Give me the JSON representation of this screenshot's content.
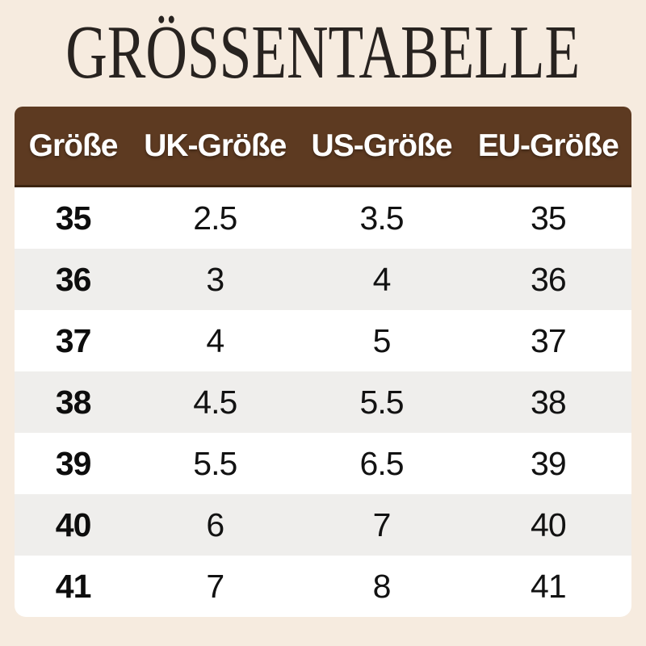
{
  "title": "GRÖSSENTABELLE",
  "colors": {
    "page_background": "#f6ebdf",
    "header_background": "#5d3a21",
    "header_border_bottom": "#3c2410",
    "header_text": "#ffffff",
    "row_white": "#ffffff",
    "row_alt": "#efeeec",
    "body_text": "#121212",
    "title_text": "#282320"
  },
  "chart_data": {
    "type": "table",
    "title": "GRÖSSENTABELLE",
    "columns": [
      "Größe",
      "UK-Größe",
      "US-Größe",
      "EU-Größe"
    ],
    "rows": [
      [
        "35",
        "2.5",
        "3.5",
        "35"
      ],
      [
        "36",
        "3",
        "4",
        "36"
      ],
      [
        "37",
        "4",
        "5",
        "37"
      ],
      [
        "38",
        "4.5",
        "5.5",
        "38"
      ],
      [
        "39",
        "5.5",
        "6.5",
        "39"
      ],
      [
        "40",
        "6",
        "7",
        "40"
      ],
      [
        "41",
        "7",
        "8",
        "41"
      ]
    ],
    "layout": {
      "header_style": "brown bar, rounded top corners, white bold text",
      "row_striping": "white / light gray alternating, first column bold",
      "legend": "none",
      "grid": "off"
    }
  }
}
